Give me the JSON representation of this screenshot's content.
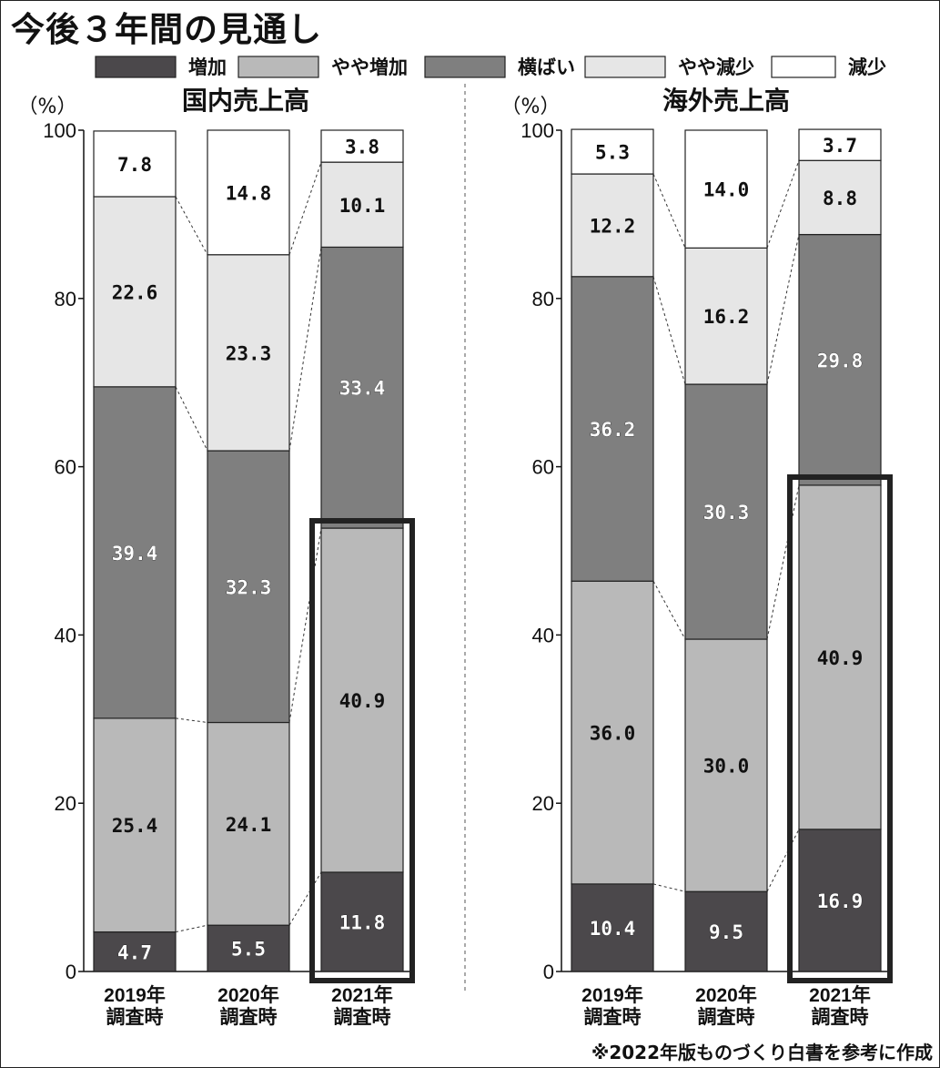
{
  "header": {
    "title": "今後３年間の見通し",
    "source": "※2022年版ものづくり白書を参考に作成"
  },
  "legend": [
    {
      "label": "増加",
      "color": "#4b484b"
    },
    {
      "label": "やや増加",
      "color": "#b9b9b9"
    },
    {
      "label": "横ばい",
      "color": "#7f7f7f"
    },
    {
      "label": "やや減少",
      "color": "#e6e6e6"
    },
    {
      "label": "減少",
      "color": "#ffffff"
    }
  ],
  "chart_data": [
    {
      "type": "bar",
      "stacked": true,
      "title": "国内売上高",
      "ylabel": "（%）",
      "ylim": [
        0,
        100
      ],
      "yticks": [
        "0",
        "20",
        "40",
        "60",
        "80",
        "100"
      ],
      "categories": [
        "2019年\n調査時",
        "2020年\n調査時",
        "2021年\n調査時"
      ],
      "highlight_category": 2,
      "series": [
        {
          "name": "増加",
          "values": [
            4.7,
            5.5,
            11.8
          ],
          "labels": [
            "4.7",
            "5.5",
            "11.8"
          ]
        },
        {
          "name": "やや増加",
          "values": [
            25.4,
            24.1,
            40.9
          ],
          "labels": [
            "25.4",
            "24.1",
            "40.9"
          ]
        },
        {
          "name": "横ばい",
          "values": [
            39.4,
            32.3,
            33.4
          ],
          "labels": [
            "39.4",
            "32.3",
            "33.4"
          ]
        },
        {
          "name": "やや減少",
          "values": [
            22.6,
            23.3,
            10.1
          ],
          "labels": [
            "22.6",
            "23.3",
            "10.1"
          ]
        },
        {
          "name": "減少",
          "values": [
            7.8,
            14.8,
            3.8
          ],
          "labels": [
            "7.8",
            "14.8",
            "3.8"
          ]
        }
      ]
    },
    {
      "type": "bar",
      "stacked": true,
      "title": "海外売上高",
      "ylabel": "（%）",
      "ylim": [
        0,
        100
      ],
      "yticks": [
        "0",
        "20",
        "40",
        "60",
        "80",
        "100"
      ],
      "categories": [
        "2019年\n調査時",
        "2020年\n調査時",
        "2021年\n調査時"
      ],
      "highlight_category": 2,
      "series": [
        {
          "name": "増加",
          "values": [
            10.4,
            9.5,
            16.9
          ],
          "labels": [
            "10.4",
            "9.5",
            "16.9"
          ]
        },
        {
          "name": "やや増加",
          "values": [
            36.0,
            30.0,
            40.9
          ],
          "labels": [
            "36.0",
            "30.0",
            "40.9"
          ]
        },
        {
          "name": "横ばい",
          "values": [
            36.2,
            30.3,
            29.8
          ],
          "labels": [
            "36.2",
            "30.3",
            "29.8"
          ]
        },
        {
          "name": "やや減少",
          "values": [
            12.2,
            16.2,
            8.8
          ],
          "labels": [
            "12.2",
            "16.2",
            "8.8"
          ]
        },
        {
          "name": "減少",
          "values": [
            5.3,
            14.0,
            3.7
          ],
          "labels": [
            "5.3",
            "14.0",
            "3.7"
          ]
        }
      ]
    }
  ]
}
